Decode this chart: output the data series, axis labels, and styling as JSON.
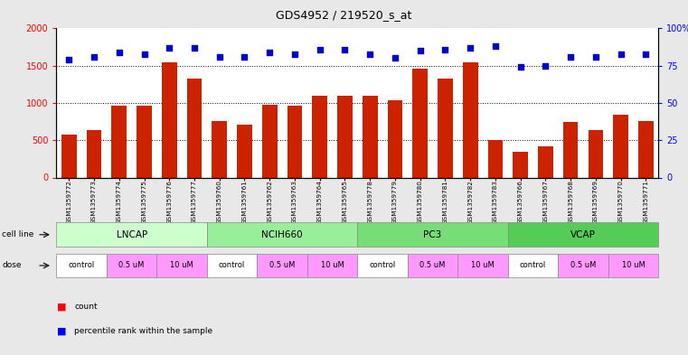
{
  "title": "GDS4952 / 219520_s_at",
  "samples": [
    "GSM1359772",
    "GSM1359773",
    "GSM1359774",
    "GSM1359775",
    "GSM1359776",
    "GSM1359777",
    "GSM1359760",
    "GSM1359761",
    "GSM1359762",
    "GSM1359763",
    "GSM1359764",
    "GSM1359765",
    "GSM1359778",
    "GSM1359779",
    "GSM1359780",
    "GSM1359781",
    "GSM1359782",
    "GSM1359783",
    "GSM1359766",
    "GSM1359767",
    "GSM1359768",
    "GSM1359769",
    "GSM1359770",
    "GSM1359771"
  ],
  "counts": [
    580,
    640,
    960,
    960,
    1550,
    1330,
    760,
    710,
    970,
    960,
    1100,
    1100,
    1100,
    1030,
    1460,
    1330,
    1550,
    500,
    350,
    420,
    740,
    640,
    840,
    760
  ],
  "percentiles": [
    79,
    81,
    84,
    83,
    87,
    87,
    81,
    81,
    84,
    83,
    86,
    86,
    83,
    80,
    85,
    86,
    87,
    88,
    74,
    75,
    81,
    81,
    83,
    83
  ],
  "cell_lines": [
    {
      "name": "LNCAP",
      "start": 0,
      "end": 6,
      "color": "#ccffcc"
    },
    {
      "name": "NCIH660",
      "start": 6,
      "end": 12,
      "color": "#99ee99"
    },
    {
      "name": "PC3",
      "start": 12,
      "end": 18,
      "color": "#77dd77"
    },
    {
      "name": "VCAP",
      "start": 18,
      "end": 24,
      "color": "#55cc55"
    }
  ],
  "dose_entries": [
    [
      "control",
      0,
      2,
      "#ffffff"
    ],
    [
      "0.5 uM",
      2,
      4,
      "#ff99ff"
    ],
    [
      "10 uM",
      4,
      6,
      "#ff99ff"
    ],
    [
      "control",
      6,
      8,
      "#ffffff"
    ],
    [
      "0.5 uM",
      8,
      10,
      "#ff99ff"
    ],
    [
      "10 uM",
      10,
      12,
      "#ff99ff"
    ],
    [
      "control",
      12,
      14,
      "#ffffff"
    ],
    [
      "0.5 uM",
      14,
      16,
      "#ff99ff"
    ],
    [
      "10 uM",
      16,
      18,
      "#ff99ff"
    ],
    [
      "control",
      18,
      20,
      "#ffffff"
    ],
    [
      "0.5 uM",
      20,
      22,
      "#ff99ff"
    ],
    [
      "10 uM",
      22,
      24,
      "#ff99ff"
    ]
  ],
  "bar_color": "#cc2200",
  "dot_color": "#0000cc",
  "left_ylim": [
    0,
    2000
  ],
  "right_ylim": [
    0,
    100
  ],
  "left_yticks": [
    0,
    500,
    1000,
    1500,
    2000
  ],
  "right_yticks": [
    0,
    25,
    50,
    75,
    100
  ],
  "right_yticklabels": [
    "0",
    "25",
    "50",
    "75",
    "100%"
  ],
  "bg_color": "#e8e8e8",
  "plot_bg": "#ffffff",
  "n_samples": 24,
  "gridlines": [
    500,
    1000,
    1500
  ]
}
